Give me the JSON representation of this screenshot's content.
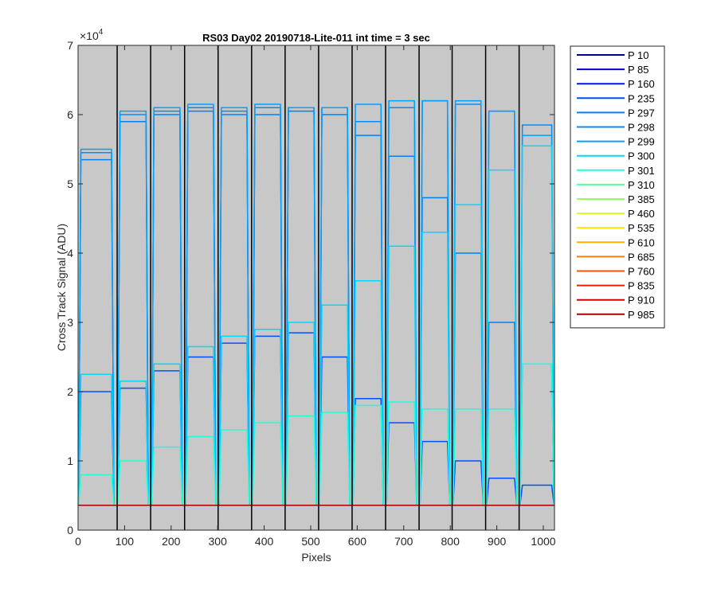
{
  "chart_data": {
    "type": "line",
    "title": "RS03 Day02 20190718-Lite-011 int time = 3 sec",
    "xlabel": "Pixels",
    "ylabel": "Cross Track Signal (ADU)",
    "y_exponent_label": "×10",
    "y_exponent_power": "4",
    "xlim": [
      0,
      1024
    ],
    "ylim": [
      0,
      70000
    ],
    "x_ticks": [
      0,
      100,
      200,
      300,
      400,
      500,
      600,
      700,
      800,
      900,
      1000
    ],
    "x_tick_labels": [
      "0",
      "100",
      "200",
      "300",
      "400",
      "500",
      "600",
      "700",
      "800",
      "900",
      "1000"
    ],
    "y_ticks": [
      0,
      10000,
      20000,
      30000,
      40000,
      50000,
      60000,
      70000
    ],
    "y_tick_labels": [
      "0",
      "1",
      "2",
      "3",
      "4",
      "5",
      "6",
      "7"
    ],
    "grid": false,
    "plot_background": "#c8c8c8",
    "legend_position": "outside-right",
    "column_boundaries": [
      84,
      156,
      229,
      301,
      373,
      445,
      517,
      589,
      661,
      733,
      804,
      876,
      948
    ],
    "segments": [
      {
        "start": 6,
        "end": 72
      },
      {
        "start": 90,
        "end": 146
      },
      {
        "start": 163,
        "end": 219
      },
      {
        "start": 236,
        "end": 291
      },
      {
        "start": 308,
        "end": 363
      },
      {
        "start": 380,
        "end": 435
      },
      {
        "start": 452,
        "end": 507
      },
      {
        "start": 524,
        "end": 579
      },
      {
        "start": 596,
        "end": 651
      },
      {
        "start": 668,
        "end": 723
      },
      {
        "start": 740,
        "end": 794
      },
      {
        "start": 811,
        "end": 866
      },
      {
        "start": 883,
        "end": 938
      },
      {
        "start": 955,
        "end": 1018
      }
    ],
    "baseline": 3600,
    "series": [
      {
        "name": "P 10",
        "color": "#000090",
        "values": [
          3600,
          3600,
          3600,
          3600,
          3600,
          3600,
          3600,
          3600,
          3600,
          3600,
          3600,
          3600,
          3600,
          3600
        ]
      },
      {
        "name": "P 85",
        "color": "#0000c8",
        "values": [
          3600,
          3600,
          3600,
          3600,
          3600,
          3600,
          3600,
          3600,
          3600,
          3600,
          3600,
          3600,
          3600,
          3600
        ]
      },
      {
        "name": "P 160",
        "color": "#0010ff",
        "values": [
          3600,
          3600,
          3600,
          3600,
          3600,
          3600,
          3600,
          3600,
          3600,
          3600,
          3600,
          3600,
          3600,
          3600
        ]
      },
      {
        "name": "P 235",
        "color": "#0050ff",
        "values": [
          20000,
          20500,
          23000,
          25000,
          27000,
          28000,
          28500,
          25000,
          19000,
          15500,
          12800,
          10000,
          7500,
          6500
        ]
      },
      {
        "name": "P 297",
        "color": "#0080ff",
        "values": [
          53500,
          59000,
          60000,
          60500,
          60000,
          60000,
          60500,
          60000,
          57000,
          54000,
          48000,
          40000,
          30000,
          24000
        ]
      },
      {
        "name": "P 298",
        "color": "#008cff",
        "values": [
          54500,
          60000,
          60500,
          61000,
          60500,
          61000,
          61000,
          61000,
          59000,
          61000,
          62000,
          61500,
          60500,
          58500
        ]
      },
      {
        "name": "P 299",
        "color": "#00a0ff",
        "values": [
          55000,
          60500,
          61000,
          61500,
          61000,
          61500,
          61000,
          61000,
          61500,
          62000,
          62000,
          62000,
          60500,
          57000
        ]
      },
      {
        "name": "P 300",
        "color": "#00d8ff",
        "values": [
          22500,
          21500,
          24000,
          26500,
          28000,
          29000,
          30000,
          32500,
          36000,
          41000,
          43000,
          47000,
          52000,
          55500
        ]
      },
      {
        "name": "P 301",
        "color": "#20ffd8",
        "values": [
          8000,
          10000,
          12000,
          13500,
          14500,
          15500,
          16500,
          17000,
          18000,
          18500,
          17500,
          17500,
          17500,
          24000
        ]
      },
      {
        "name": "P 310",
        "color": "#50ffa0",
        "values": [
          3600,
          3600,
          3600,
          3600,
          3600,
          3600,
          3600,
          3600,
          3600,
          3600,
          3600,
          3600,
          3600,
          3600
        ]
      },
      {
        "name": "P 385",
        "color": "#90ff60",
        "values": [
          3600,
          3600,
          3600,
          3600,
          3600,
          3600,
          3600,
          3600,
          3600,
          3600,
          3600,
          3600,
          3600,
          3600
        ]
      },
      {
        "name": "P 460",
        "color": "#d0ff20",
        "values": [
          3600,
          3600,
          3600,
          3600,
          3600,
          3600,
          3600,
          3600,
          3600,
          3600,
          3600,
          3600,
          3600,
          3600
        ]
      },
      {
        "name": "P 535",
        "color": "#ffe000",
        "values": [
          3600,
          3600,
          3600,
          3600,
          3600,
          3600,
          3600,
          3600,
          3600,
          3600,
          3600,
          3600,
          3600,
          3600
        ]
      },
      {
        "name": "P 610",
        "color": "#ffb000",
        "values": [
          3600,
          3600,
          3600,
          3600,
          3600,
          3600,
          3600,
          3600,
          3600,
          3600,
          3600,
          3600,
          3600,
          3600
        ]
      },
      {
        "name": "P 685",
        "color": "#ff8000",
        "values": [
          3600,
          3600,
          3600,
          3600,
          3600,
          3600,
          3600,
          3600,
          3600,
          3600,
          3600,
          3600,
          3600,
          3600
        ]
      },
      {
        "name": "P 760",
        "color": "#ff5000",
        "values": [
          3600,
          3600,
          3600,
          3600,
          3600,
          3600,
          3600,
          3600,
          3600,
          3600,
          3600,
          3600,
          3600,
          3600
        ]
      },
      {
        "name": "P 835",
        "color": "#f02000",
        "values": [
          3600,
          3600,
          3600,
          3600,
          3600,
          3600,
          3600,
          3600,
          3600,
          3600,
          3600,
          3600,
          3600,
          3600
        ]
      },
      {
        "name": "P 910",
        "color": "#d00000",
        "values": [
          3600,
          3600,
          3600,
          3600,
          3600,
          3600,
          3600,
          3600,
          3600,
          3600,
          3600,
          3600,
          3600,
          3600
        ]
      },
      {
        "name": "P 985",
        "color": "#a00000",
        "values": [
          3600,
          3600,
          3600,
          3600,
          3600,
          3600,
          3600,
          3600,
          3600,
          3600,
          3600,
          3600,
          3600,
          3600
        ]
      }
    ]
  }
}
